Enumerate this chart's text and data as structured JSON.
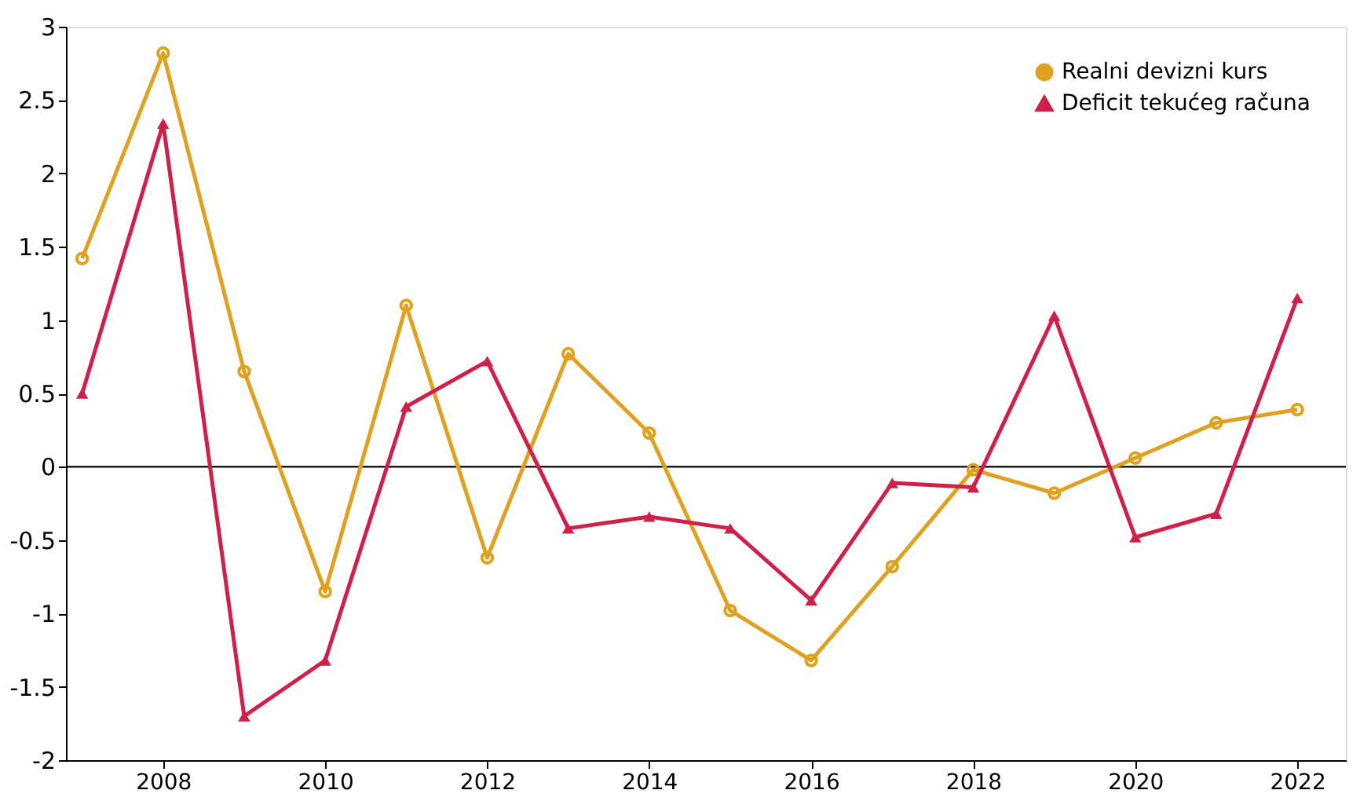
{
  "chart_data": {
    "type": "line",
    "x": [
      2007,
      2008,
      2009,
      2010,
      2011,
      2012,
      2013,
      2014,
      2015,
      2016,
      2017,
      2018,
      2019,
      2020,
      2021,
      2022
    ],
    "series": [
      {
        "name": "Realni devizni kurs",
        "color": "#e0a020",
        "marker": "circle",
        "values": [
          1.42,
          2.82,
          0.65,
          -0.85,
          1.1,
          -0.62,
          0.77,
          0.23,
          -0.98,
          -1.32,
          -0.68,
          -0.02,
          -0.18,
          0.06,
          0.3,
          0.39
        ]
      },
      {
        "name": "Deficit tekućeg računa",
        "color": "#d0204a",
        "marker": "triangle",
        "values": [
          0.5,
          2.34,
          -1.7,
          -1.32,
          0.41,
          0.72,
          -0.42,
          -0.34,
          -0.42,
          -0.91,
          -0.11,
          -0.14,
          1.03,
          -0.48,
          -0.32,
          1.15
        ]
      }
    ],
    "xlim": [
      2006.8,
      2022.6
    ],
    "xticks": [
      2008,
      2010,
      2012,
      2014,
      2016,
      2018,
      2020,
      2022
    ],
    "ylim": [
      -2,
      3
    ],
    "yticks": [
      -2,
      -1.5,
      -1,
      -0.5,
      0,
      0.5,
      1,
      1.5,
      2,
      2.5,
      3
    ],
    "ref_lines": [
      {
        "axis": "y",
        "value": 0,
        "color": "#000000"
      }
    ],
    "grid": false,
    "legend": "top right",
    "line_style": "solid"
  }
}
